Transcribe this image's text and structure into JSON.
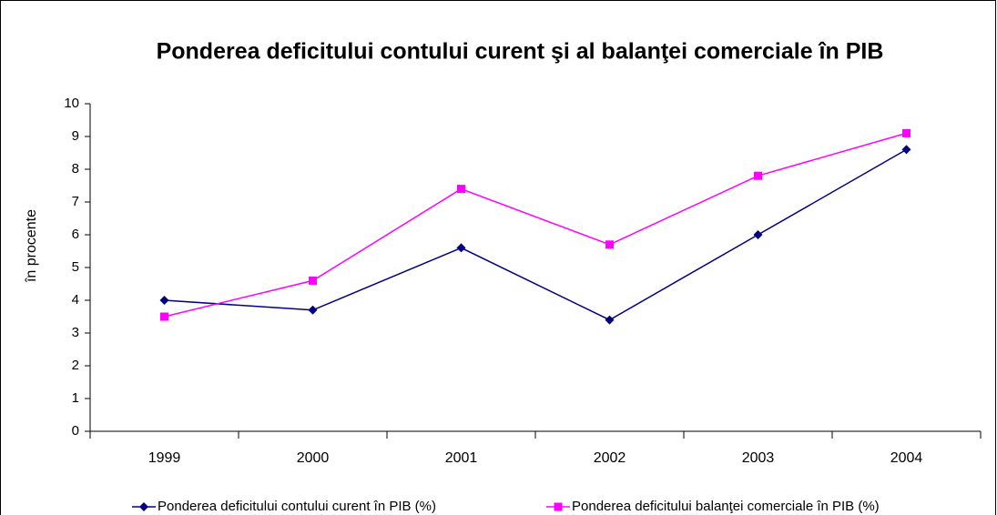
{
  "chart_data": {
    "type": "line",
    "title": "Ponderea deficitului contului curent şi al balanţei comerciale în PIB",
    "y_label": "în procente",
    "categories": [
      "1999",
      "2000",
      "2001",
      "2002",
      "2003",
      "2004"
    ],
    "series": [
      {
        "name": "Ponderea deficitului contului curent în PIB (%)",
        "color": "#000080",
        "marker": "diamond",
        "values": [
          4.0,
          3.7,
          5.6,
          3.4,
          6.0,
          8.6
        ]
      },
      {
        "name": "Ponderea deficitului balanţei comerciale în PIB (%)",
        "color": "#ff00ff",
        "marker": "square",
        "values": [
          3.5,
          4.6,
          7.4,
          5.7,
          7.8,
          9.1
        ]
      }
    ],
    "ylim": [
      0,
      10
    ],
    "yticks": [
      0,
      1,
      2,
      3,
      4,
      5,
      6,
      7,
      8,
      9,
      10
    ],
    "grid": false,
    "legend": "bottom"
  }
}
